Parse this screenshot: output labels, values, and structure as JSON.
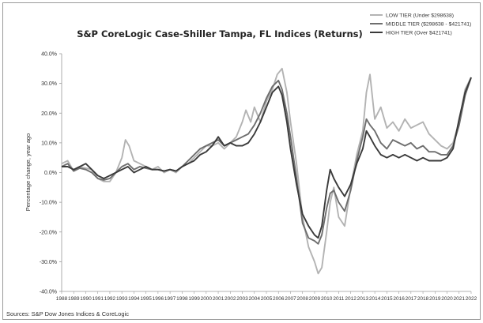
{
  "chart_data": {
    "type": "line",
    "title": "S&P CoreLogic Case-Shiller Tampa, FL Indices (Returns)",
    "ylabel": "Percentage change, year ago",
    "xlabel": "",
    "ylim": [
      -40,
      40
    ],
    "yticks": [
      40,
      30,
      20,
      10,
      0,
      -10,
      -20,
      -30,
      -40
    ],
    "ytick_labels": [
      "40.0%",
      "30.0%",
      "20.0%",
      "10.0%",
      "0.0%",
      "-10.0%",
      "-20.0%",
      "-30.0%",
      "-40.0%"
    ],
    "xlim": [
      1988,
      2022
    ],
    "xtick_labels": [
      "1988",
      "1989",
      "1990",
      "1991",
      "1992",
      "1993",
      "1994",
      "1995",
      "1996",
      "1997",
      "1998",
      "1999",
      "2000",
      "2001",
      "2002",
      "2003",
      "2004",
      "2005",
      "2006",
      "2007",
      "2008",
      "2009",
      "2010",
      "2011",
      "2012",
      "2013",
      "2014",
      "2015",
      "2016",
      "2017",
      "2018",
      "2019",
      "2020",
      "2021",
      "2022"
    ],
    "grid": false,
    "legend_position": "top-right",
    "source": "Sources: S&P Dow Jones Indices & CoreLogic",
    "series": [
      {
        "name": "LOW TIER (Under $298638)",
        "color": "#b3b3b3",
        "x": [
          1988,
          1988.5,
          1989,
          1989.5,
          1990,
          1990.5,
          1991,
          1991.5,
          1992,
          1992.5,
          1993,
          1993.3,
          1993.6,
          1994,
          1994.5,
          1995,
          1995.5,
          1996,
          1996.5,
          1997,
          1997.5,
          1998,
          1998.5,
          1999,
          1999.5,
          2000,
          2000.5,
          2001,
          2001.5,
          2002,
          2002.5,
          2003,
          2003.3,
          2003.7,
          2004,
          2004.5,
          2005,
          2005.5,
          2005.9,
          2006.3,
          2006.7,
          2007,
          2007.5,
          2008,
          2008.5,
          2009,
          2009.3,
          2009.6,
          2010,
          2010.3,
          2010.6,
          2011,
          2011.5,
          2012,
          2012.5,
          2013,
          2013.3,
          2013.6,
          2014,
          2014.5,
          2015,
          2015.5,
          2016,
          2016.5,
          2017,
          2017.5,
          2018,
          2018.5,
          2019,
          2019.5,
          2020,
          2020.5,
          2021,
          2021.5,
          2022
        ],
        "values": [
          3,
          4,
          0.5,
          2,
          1.5,
          1,
          -2,
          -3,
          -3,
          0,
          5,
          11,
          9,
          4,
          3,
          2,
          1,
          2,
          0,
          1,
          0,
          2,
          3,
          5,
          7,
          9,
          9,
          10,
          8,
          10,
          12,
          17,
          21,
          17,
          22,
          17,
          24,
          28,
          33,
          35,
          27,
          17,
          3,
          -15,
          -25,
          -30,
          -34,
          -32,
          -20,
          -10,
          -5,
          -15,
          -18,
          -5,
          6,
          14,
          27,
          33,
          18,
          22,
          15,
          17,
          14,
          18,
          15,
          16,
          17,
          13,
          11,
          9,
          8,
          10,
          17,
          28,
          32
        ]
      },
      {
        "name": "MIDDLE TIER ($298638 - $421741)",
        "color": "#6e6e6e",
        "x": [
          1988,
          1988.5,
          1989,
          1989.5,
          1990,
          1990.5,
          1991,
          1991.5,
          1992,
          1992.5,
          1993,
          1993.5,
          1994,
          1994.5,
          1995,
          1995.5,
          1996,
          1996.5,
          1997,
          1997.5,
          1998,
          1998.5,
          1999,
          1999.5,
          2000,
          2000.5,
          2001,
          2001.5,
          2002,
          2002.5,
          2003,
          2003.5,
          2004,
          2004.5,
          2005,
          2005.5,
          2006,
          2006.3,
          2006.7,
          2007,
          2007.5,
          2008,
          2008.5,
          2009,
          2009.3,
          2009.6,
          2010,
          2010.3,
          2010.6,
          2011,
          2011.5,
          2012,
          2012.5,
          2013,
          2013.3,
          2013.6,
          2014,
          2014.5,
          2015,
          2015.5,
          2016,
          2016.5,
          2017,
          2017.5,
          2018,
          2018.5,
          2019,
          2019.5,
          2020,
          2020.5,
          2021,
          2021.5,
          2022
        ],
        "values": [
          2,
          3,
          0.5,
          1.5,
          1,
          0,
          -2,
          -2.5,
          -2,
          0,
          2,
          3,
          1,
          2,
          1.5,
          1,
          1,
          0.5,
          1,
          0.5,
          2,
          4,
          6,
          8,
          9,
          10,
          11,
          9,
          10,
          11,
          12,
          13,
          16,
          20,
          25,
          29,
          31,
          28,
          20,
          12,
          -2,
          -17,
          -22,
          -23,
          -24,
          -21,
          -12,
          -7,
          -6,
          -10,
          -13,
          -6,
          4,
          12,
          18,
          16,
          14,
          10,
          8,
          11,
          10,
          9,
          10,
          8,
          9,
          7,
          7,
          6,
          6,
          9,
          16,
          26,
          32
        ]
      },
      {
        "name": "HIGH TIER (Over $421741)",
        "color": "#3a3a3a",
        "x": [
          1988,
          1988.5,
          1989,
          1989.5,
          1990,
          1990.5,
          1991,
          1991.5,
          1992,
          1992.5,
          1993,
          1993.5,
          1994,
          1994.5,
          1995,
          1995.5,
          1996,
          1996.5,
          1997,
          1997.5,
          1998,
          1998.5,
          1999,
          1999.5,
          2000,
          2000.5,
          2001,
          2001.5,
          2002,
          2002.5,
          2003,
          2003.5,
          2004,
          2004.5,
          2005,
          2005.5,
          2006,
          2006.3,
          2006.7,
          2007,
          2007.5,
          2008,
          2008.5,
          2009,
          2009.3,
          2009.6,
          2010,
          2010.3,
          2010.6,
          2011,
          2011.5,
          2012,
          2012.5,
          2013,
          2013.3,
          2013.6,
          2014,
          2014.5,
          2015,
          2015.5,
          2016,
          2016.5,
          2017,
          2017.5,
          2018,
          2018.5,
          2019,
          2019.5,
          2020,
          2020.5,
          2021,
          2021.5,
          2022
        ],
        "values": [
          2,
          2,
          1,
          2,
          3,
          1,
          -1,
          -2,
          -1,
          0,
          1,
          2,
          0,
          1,
          2,
          1,
          1,
          0.5,
          1,
          0.5,
          2,
          3,
          4,
          6,
          7,
          9,
          12,
          9,
          10,
          9,
          9,
          10,
          13,
          17,
          22,
          27,
          29,
          26,
          17,
          8,
          -4,
          -14,
          -18,
          -21,
          -22,
          -18,
          -6,
          1,
          -2,
          -5,
          -8,
          -4,
          3,
          8,
          14,
          12,
          9,
          6,
          5,
          6,
          5,
          6,
          5,
          4,
          5,
          4,
          4,
          4,
          5,
          8,
          18,
          27,
          32
        ]
      }
    ]
  }
}
